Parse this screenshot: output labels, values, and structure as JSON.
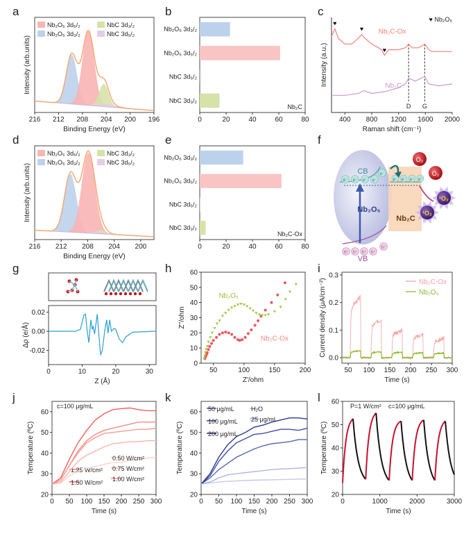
{
  "panel_letters": [
    "a",
    "b",
    "c",
    "d",
    "e",
    "f",
    "g",
    "h",
    "i",
    "j",
    "k",
    "l"
  ],
  "chart_data": [
    {
      "panel": "a",
      "type": "area",
      "xlabel": "Binding Energy (eV)",
      "ylabel": "Intensity (arb.units)",
      "xlim": [
        216,
        196
      ],
      "ylim": [
        0,
        1
      ],
      "xticks": [
        216,
        212,
        208,
        204,
        200,
        196
      ],
      "background": [
        0.12,
        0.02
      ],
      "envelope_color": "#f5a66a",
      "components": [
        {
          "name": "Nb₂O₅ 3d₅/₂",
          "center": 207.0,
          "height": 0.78,
          "width": 1.0,
          "color": "#f9b4b4"
        },
        {
          "name": "Nb₂O₅ 3d₃/₂",
          "center": 209.8,
          "height": 0.52,
          "width": 0.9,
          "color": "#bcd2ec"
        },
        {
          "name": "NbC 3d₃/₂",
          "center": 204.4,
          "height": 0.24,
          "width": 0.8,
          "color": "#d6e2a8"
        },
        {
          "name": "NbC 3d₅/₂",
          "center": 204.0,
          "height": 0.03,
          "width": 1.5,
          "color": "#e4cde8"
        }
      ]
    },
    {
      "panel": "b",
      "type": "bar",
      "categories": [
        "Nb₂O₅ 3d₃/₂",
        "Nb₂O₅ 3d₅/₂",
        "NbC 3d₅/₂",
        "NbC 3d₃/₂"
      ],
      "values": [
        23,
        61,
        1,
        15
      ],
      "colors": [
        "#bcd2ec",
        "#f9c4c4",
        "#e4cde8",
        "#d6e2a8"
      ],
      "xlim": [
        0,
        80
      ],
      "xticks": [
        0,
        20,
        40,
        60,
        80
      ],
      "annotation": "Nb₂C"
    },
    {
      "panel": "c",
      "type": "line",
      "xlabel": "Raman shift (cm⁻¹)",
      "ylabel": "Intensity (a.u.)",
      "xlim": [
        200,
        2000
      ],
      "ylim": [
        0,
        1
      ],
      "xticks": [
        400,
        800,
        1200,
        1600,
        2000
      ],
      "series": [
        {
          "name": "Nb₂C-Ox",
          "color": "#f4837a",
          "x": [
            200,
            250,
            300,
            400,
            500,
            600,
            650,
            700,
            800,
            900,
            950,
            990,
            1050,
            1200,
            1300,
            1350,
            1400,
            1500,
            1590,
            1650,
            1700,
            1800,
            2000
          ],
          "y": [
            0.8,
            0.88,
            0.78,
            0.72,
            0.72,
            0.78,
            0.82,
            0.78,
            0.72,
            0.68,
            0.66,
            0.6,
            0.66,
            0.66,
            0.68,
            0.72,
            0.68,
            0.68,
            0.72,
            0.66,
            0.64,
            0.64,
            0.64
          ]
        },
        {
          "name": "Nb₂C",
          "color": "#c79ad0",
          "x": [
            200,
            400,
            600,
            680,
            800,
            1000,
            1200,
            1300,
            1350,
            1450,
            1590,
            1650,
            1800,
            2000
          ],
          "y": [
            0.18,
            0.18,
            0.2,
            0.23,
            0.2,
            0.22,
            0.26,
            0.3,
            0.36,
            0.33,
            0.38,
            0.3,
            0.28,
            0.3
          ]
        }
      ],
      "marker_legend": "♥ Nb₂O₅",
      "marker_symbol": "♥",
      "marker_x": [
        250,
        650,
        990
      ],
      "reference_lines": [
        {
          "x": 1350,
          "label": "D"
        },
        {
          "x": 1590,
          "label": "G"
        }
      ]
    },
    {
      "panel": "d",
      "type": "area",
      "xlabel": "Binding Energy (eV)",
      "ylabel": "Intensity (arb.units)",
      "xlim": [
        216,
        198
      ],
      "ylim": [
        0,
        1
      ],
      "xticks": [
        216,
        212,
        208,
        204,
        200
      ],
      "background": [
        0.1,
        0.03
      ],
      "envelope_color": "#f5a66a",
      "components": [
        {
          "name": "Nb₂O₅ 3d₅/₂",
          "center": 207.9,
          "height": 0.86,
          "width": 1.0,
          "color": "#f9b4b4"
        },
        {
          "name": "Nb₂O₅ 3d₃/₂",
          "center": 210.6,
          "height": 0.62,
          "width": 0.9,
          "color": "#bcd2ec"
        },
        {
          "name": "NbC 3d₃/₂",
          "center": 206.0,
          "height": 0.04,
          "width": 0.8,
          "color": "#d6e2a8"
        },
        {
          "name": "NbC 3d₅/₂",
          "center": 206.5,
          "height": 0.02,
          "width": 1.2,
          "color": "#e4cde8"
        }
      ]
    },
    {
      "panel": "e",
      "type": "bar",
      "categories": [
        "Nb₂O₅ 3d₃/₂",
        "Nb₂O₅ 3d₅/₂",
        "NbC 3d₅/₂",
        "NbC 3d₃/₂"
      ],
      "values": [
        33,
        62,
        0.5,
        4.5
      ],
      "colors": [
        "#bcd2ec",
        "#f9c4c4",
        "#e4cde8",
        "#d6e2a8"
      ],
      "xlim": [
        0,
        80
      ],
      "xticks": [
        0,
        20,
        40,
        60,
        80
      ],
      "annotation": "Nb₂C-Ox"
    },
    {
      "panel": "g",
      "type": "line",
      "xlabel": "Z (Å)",
      "ylabel": "Δρ (e/Å)",
      "xlim": [
        0,
        32
      ],
      "ylim": [
        -0.035,
        0.027
      ],
      "xticks": [
        0,
        10,
        20,
        30
      ],
      "yticks": [
        "-0.02",
        "0.00",
        "0.02"
      ],
      "series": [
        {
          "color": "#2a9fd0",
          "x": [
            0,
            8,
            9.5,
            10.5,
            11,
            11.5,
            12,
            12.6,
            13,
            13.3,
            13.7,
            14.5,
            15,
            15.5,
            16,
            16.7,
            17.3,
            17.7,
            18.2,
            18.7,
            19.5,
            20,
            21,
            22,
            23,
            25,
            32
          ],
          "y": [
            0,
            0,
            0.002,
            0.017,
            0.018,
            0,
            -0.012,
            0.012,
            0.002,
            0.005,
            -0.003,
            0.018,
            -0.005,
            -0.025,
            -0.02,
            0,
            0.012,
            -0.002,
            0.012,
            0,
            0.003,
            0.002,
            -0.008,
            -0.012,
            -0.006,
            -0.001,
            0
          ]
        }
      ]
    },
    {
      "panel": "h",
      "type": "scatter",
      "xlabel": "Z'/ohm",
      "ylabel": "Z''/ohm",
      "xlim": [
        30,
        200
      ],
      "ylim": [
        0,
        60
      ],
      "xticks": [
        50,
        100,
        150,
        200
      ],
      "yticks": [
        "0",
        "10",
        "20",
        "30",
        "40",
        "50",
        "60"
      ],
      "series": [
        {
          "name": "Nb₂C-Ox",
          "color": "#f2545b",
          "marker": "circle",
          "x": [
            36,
            37,
            38,
            39,
            40,
            42,
            44,
            47,
            50,
            55,
            60,
            65,
            70,
            75,
            80,
            85,
            90,
            93,
            97,
            102,
            107,
            112,
            118,
            123,
            128,
            135,
            145,
            155,
            167
          ],
          "y": [
            3,
            4,
            5,
            6,
            7,
            9,
            11,
            13,
            15,
            17,
            19,
            20,
            20.5,
            20,
            19,
            17,
            15.5,
            15,
            15.5,
            17,
            19.5,
            22,
            25,
            28,
            31,
            35,
            40,
            45,
            53
          ]
        },
        {
          "name": "Nb₂O₅",
          "color": "#a6c94a",
          "marker": "triangle-down",
          "x": [
            35,
            36,
            37,
            38,
            40,
            42,
            45,
            48,
            52,
            56,
            60,
            65,
            70,
            75,
            80,
            85,
            90,
            95,
            100,
            105,
            110,
            115,
            120,
            125,
            130,
            135,
            140,
            150,
            160,
            168,
            175,
            185
          ],
          "y": [
            3,
            5,
            7,
            9,
            11,
            14,
            17,
            20,
            23,
            26,
            28,
            31,
            33,
            35,
            36.5,
            37.5,
            38.5,
            39,
            38.5,
            37.5,
            36,
            34.5,
            33,
            32,
            31.5,
            31.5,
            32,
            34,
            37,
            42,
            47,
            52
          ]
        }
      ]
    },
    {
      "panel": "i",
      "type": "line",
      "xlabel": "Time (s)",
      "ylabel": "Current density (μA/cm⁻²)",
      "xlim": [
        35,
        300
      ],
      "ylim": [
        -0.02,
        0.31
      ],
      "xticks": [
        50,
        100,
        150,
        200,
        250,
        300
      ],
      "yticks": [
        "0.0",
        "0.1",
        "0.2",
        "0.3"
      ],
      "legend": "top-right",
      "series": [
        {
          "name": "Nb₂C-Ox",
          "color": "#f7a1a1",
          "light_on": [
            55,
            105,
            155,
            205,
            255
          ],
          "light_off": [
            80,
            130,
            180,
            230,
            280
          ],
          "on_values": [
            0.22,
            0.14,
            0.1,
            0.085,
            0.07
          ]
        },
        {
          "name": "Nb₂O₅",
          "color": "#8dbb2a",
          "light_on": [
            55,
            105,
            155,
            205,
            255
          ],
          "light_off": [
            80,
            130,
            180,
            230,
            280
          ],
          "on_values": [
            0.025,
            0.022,
            0.02,
            0.018,
            0.017
          ]
        }
      ]
    },
    {
      "panel": "j",
      "type": "line",
      "xlabel": "Time (s)",
      "ylabel": "Temperature (ºC)",
      "xlim": [
        0,
        300
      ],
      "ylim": [
        20,
        65
      ],
      "xticks": [
        0,
        50,
        100,
        150,
        200,
        250,
        300
      ],
      "yticks": [
        "20",
        "30",
        "40",
        "50",
        "60"
      ],
      "annotation": "c=100 μg/mL",
      "legend": "bottom-right",
      "x": [
        0,
        25,
        50,
        75,
        100,
        125,
        150,
        175,
        200,
        225,
        250,
        275,
        300
      ],
      "series": [
        {
          "name": "1.25 W/cm²",
          "color": "#f48a80",
          "y": [
            25,
            27,
            34,
            41,
            46,
            49,
            51,
            52,
            53,
            54,
            55,
            55,
            55
          ]
        },
        {
          "name": "1.50 W/cm²",
          "color": "#f0605a",
          "y": [
            25,
            28,
            37,
            45,
            51,
            56,
            59,
            61,
            61.5,
            61.8,
            61,
            60.5,
            60.5
          ]
        },
        {
          "name": "0.50 W/cm²",
          "color": "#fbd0ca",
          "y": [
            25,
            25.5,
            29,
            31,
            32.5,
            33.5,
            34.5,
            35.5,
            35.5,
            36.5,
            37,
            37.5,
            38
          ]
        },
        {
          "name": "0.75 W/cm²",
          "color": "#f8b5ad",
          "y": [
            25,
            26,
            31,
            36,
            39,
            41,
            43,
            44.5,
            45,
            45.5,
            45.5,
            46,
            46
          ]
        },
        {
          "name": "1.00 W/cm²",
          "color": "#f69a92",
          "y": [
            25,
            27,
            34,
            40,
            45,
            47.5,
            49.5,
            50,
            50.5,
            51,
            51.5,
            51.5,
            52
          ]
        }
      ]
    },
    {
      "panel": "k",
      "type": "line",
      "xlabel": "Time (s)",
      "ylabel": "Temperature (ºC)",
      "xlim": [
        0,
        300
      ],
      "ylim": [
        20,
        65
      ],
      "xticks": [
        0,
        50,
        100,
        150,
        200,
        250,
        300
      ],
      "yticks": [
        "20",
        "30",
        "40",
        "50",
        "60"
      ],
      "legend": "top-left",
      "x": [
        0,
        25,
        50,
        75,
        100,
        125,
        150,
        175,
        200,
        225,
        250,
        275,
        300
      ],
      "series": [
        {
          "name": "50 μg/mL",
          "color": "#5565b5",
          "y": [
            25,
            28,
            32,
            35,
            38,
            40,
            42,
            43.5,
            44.5,
            45,
            45.5,
            46.5,
            46.5
          ]
        },
        {
          "name": "100 μg/mL",
          "color": "#3d4fa6",
          "y": [
            25,
            29,
            36,
            41,
            45,
            47,
            49,
            49.5,
            50.5,
            51.5,
            51.5,
            51,
            52
          ]
        },
        {
          "name": "200 μg/mL",
          "color": "#2d3a8c",
          "y": [
            25,
            30,
            38,
            44,
            48,
            50,
            52.5,
            53.5,
            55,
            56,
            57,
            57,
            56.5
          ]
        },
        {
          "name": "H₂O",
          "color": "#c8c8e6",
          "y": [
            25,
            25.5,
            26,
            26.3,
            26.5,
            26.7,
            26.9,
            27,
            27.1,
            27.2,
            27.3,
            27.4,
            27.5
          ]
        },
        {
          "name": "25 μg/mL",
          "color": "#b0b5dc",
          "y": [
            25,
            26,
            28,
            29.5,
            30,
            30.5,
            31,
            31.5,
            32,
            32.3,
            32.5,
            32.7,
            33
          ]
        }
      ]
    },
    {
      "panel": "l",
      "type": "line",
      "xlabel": "Time (s)",
      "ylabel": "Temperature (ºC)",
      "xlim": [
        0,
        3000
      ],
      "ylim": [
        20,
        60
      ],
      "xticks": [
        0,
        1000,
        2000,
        3000
      ],
      "yticks": [
        "20",
        "30",
        "40",
        "50",
        "60"
      ],
      "annotations": [
        "P=1 W/cm²",
        "c=100 μg/mL"
      ],
      "heating_color": "#c8102e",
      "cooling_color": "#111111",
      "cycles": [
        {
          "laser_on": 0,
          "laser_off": 280,
          "start_temp": 25,
          "peak_temp": 52.5,
          "end_time": 620,
          "end_temp": 26.5
        },
        {
          "laser_on": 620,
          "laser_off": 900,
          "start_temp": 26.5,
          "peak_temp": 55,
          "end_time": 1250,
          "end_temp": 26
        },
        {
          "laser_on": 1250,
          "laser_off": 1570,
          "start_temp": 26,
          "peak_temp": 51.5,
          "end_time": 1870,
          "end_temp": 26
        },
        {
          "laser_on": 1870,
          "laser_off": 2180,
          "start_temp": 26,
          "peak_temp": 52,
          "end_time": 2480,
          "end_temp": 26
        },
        {
          "laser_on": 2480,
          "laser_off": 2760,
          "start_temp": 26,
          "peak_temp": 51.5,
          "end_time": 3000,
          "end_temp": 28.5
        }
      ]
    }
  ],
  "diagram_f": {
    "cb": "CB",
    "vb": "VB",
    "semiconductor": "Nb₂O₅",
    "cocatalyst": "Nb₂C",
    "electron": "e⁻",
    "hole": "h⁺",
    "oxygen": "O₂",
    "singlet_oxygen": "¹O₂"
  },
  "diagram_g": {}
}
